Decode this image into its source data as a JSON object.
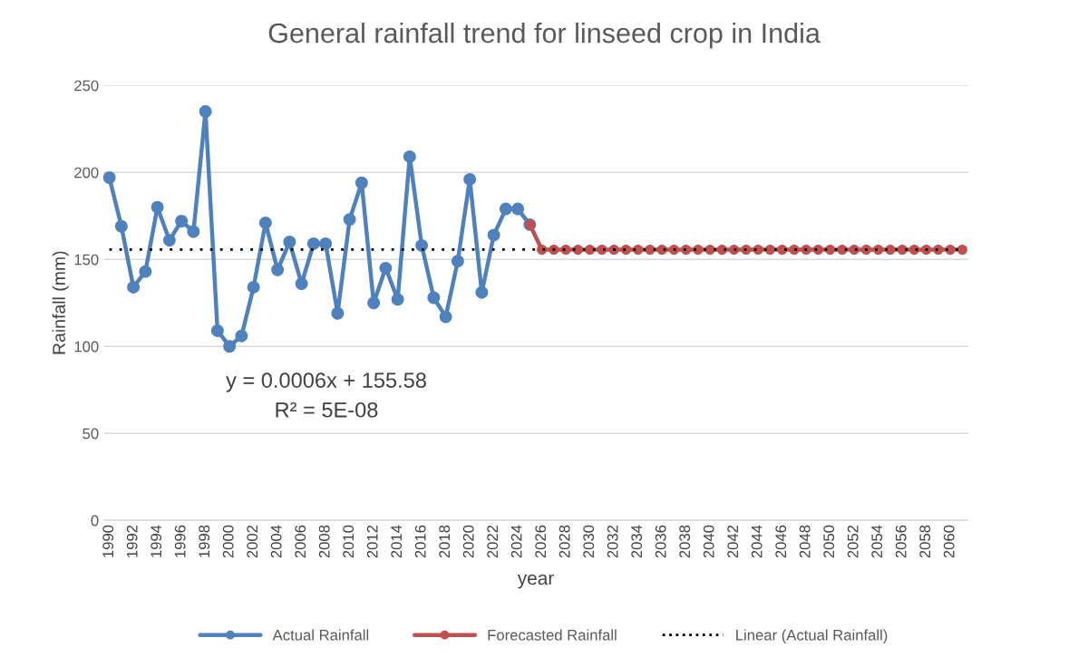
{
  "chart_data": {
    "type": "line",
    "title": "General rainfall trend for linseed crop in India",
    "xlabel": "year",
    "ylabel": "Rainfall (mm)",
    "categories": [
      "1990",
      null,
      "1992",
      null,
      "1994",
      null,
      "1996",
      null,
      "1998",
      null,
      "2000",
      null,
      "2002",
      null,
      "2004",
      null,
      "2006",
      null,
      "2008",
      null,
      "2010",
      null,
      "2012",
      null,
      "2014",
      null,
      "2016",
      null,
      "2018",
      null,
      "2020",
      null,
      "2022",
      null,
      "2024",
      null,
      "2026",
      null,
      "2028",
      null,
      "2030",
      null,
      "2032",
      null,
      "2034",
      null,
      "2036",
      null,
      "2038",
      null,
      "2040",
      null,
      "2042",
      null,
      "2044",
      null,
      "2046",
      null,
      "2048",
      null,
      "2050",
      null,
      "2052",
      null,
      "2054",
      null,
      "2056",
      null,
      "2058",
      null,
      "2060",
      null
    ],
    "series": [
      {
        "name": "Actual Rainfall",
        "color": "#4f81bd",
        "marker": "circle",
        "line_style": "solid",
        "values": [
          197,
          169,
          134,
          143,
          180,
          161,
          172,
          166,
          235,
          109,
          100,
          106,
          134,
          171,
          144,
          160,
          136,
          159,
          159,
          119,
          173,
          194,
          125,
          145,
          127,
          209,
          158,
          128,
          117,
          149,
          196,
          131,
          164,
          179,
          179,
          170,
          null,
          null,
          null,
          null,
          null,
          null,
          null,
          null,
          null,
          null,
          null,
          null,
          null,
          null,
          null,
          null,
          null,
          null,
          null,
          null,
          null,
          null,
          null,
          null,
          null,
          null,
          null,
          null,
          null,
          null,
          null,
          null,
          null,
          null,
          null,
          null
        ]
      },
      {
        "name": "Forecasted Rainfall",
        "color": "#c0504d",
        "marker": "circle",
        "line_style": "solid",
        "values": [
          null,
          null,
          null,
          null,
          null,
          null,
          null,
          null,
          null,
          null,
          null,
          null,
          null,
          null,
          null,
          null,
          null,
          null,
          null,
          null,
          null,
          null,
          null,
          null,
          null,
          null,
          null,
          null,
          null,
          null,
          null,
          null,
          null,
          null,
          null,
          170,
          155.6,
          155.6,
          155.6,
          155.6,
          155.6,
          155.6,
          155.6,
          155.6,
          155.6,
          155.6,
          155.6,
          155.6,
          155.6,
          155.6,
          155.6,
          155.6,
          155.6,
          155.6,
          155.6,
          155.6,
          155.6,
          155.6,
          155.6,
          155.6,
          155.6,
          155.6,
          155.6,
          155.6,
          155.6,
          155.6,
          155.6,
          155.6,
          155.6,
          155.6,
          155.6,
          155.6
        ]
      },
      {
        "name": "Linear (Actual Rainfall)",
        "type": "line",
        "color": "#000000",
        "marker": "none",
        "line_style": "dotted",
        "values": [
          155.6,
          155.6,
          155.6,
          155.6,
          155.6,
          155.6,
          155.6,
          155.6,
          155.6,
          155.6,
          155.6,
          155.6,
          155.6,
          155.6,
          155.6,
          155.6,
          155.6,
          155.6,
          155.6,
          155.6,
          155.6,
          155.6,
          155.6,
          155.6,
          155.6,
          155.6,
          155.6,
          155.6,
          155.6,
          155.6,
          155.6,
          155.6,
          155.6,
          155.6,
          155.6,
          155.6,
          155.6,
          155.6,
          155.6,
          155.6,
          155.6,
          155.6,
          155.6,
          155.6,
          155.6,
          155.6,
          155.6,
          155.6,
          155.6,
          155.6,
          155.6,
          155.6,
          155.6,
          155.6,
          155.6,
          155.6,
          155.6,
          155.6,
          155.6,
          155.6,
          155.6,
          155.6,
          155.6,
          155.6,
          155.6,
          155.6,
          155.6,
          155.6,
          155.6,
          155.6,
          155.6,
          155.6
        ]
      }
    ],
    "annotations": [
      "y = 0.0006x + 155.58",
      "R² = 5E-08"
    ],
    "ylim": [
      0,
      250
    ],
    "yticks": [
      0,
      50,
      100,
      150,
      200,
      250
    ],
    "grid": "y",
    "legend": "bottom"
  }
}
